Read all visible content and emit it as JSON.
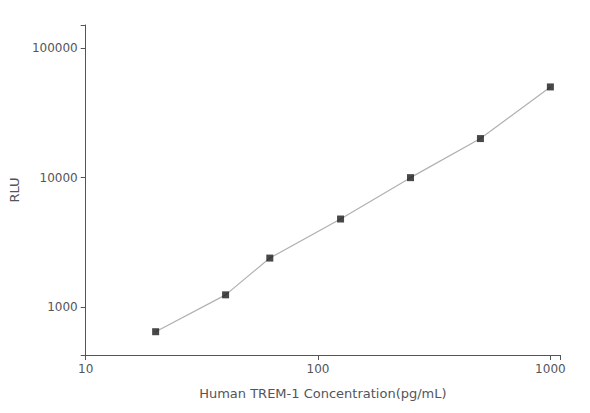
{
  "chart_data": {
    "type": "line",
    "x": [
      20,
      40,
      62,
      125,
      250,
      500,
      1000
    ],
    "series": [
      {
        "type": "line",
        "color": "#b0b0b0",
        "values": [
          650,
          1250,
          2400,
          4800,
          10000,
          20000,
          50000
        ]
      },
      {
        "type": "scatter",
        "color": "#1a1a1a",
        "marker": "square",
        "values": [
          650,
          1250,
          2400,
          4800,
          10000,
          20000,
          50000
        ]
      }
    ],
    "xlabel": "Human TREM-1 Concentration(pg/mL)",
    "ylabel": "RLU",
    "xlim": [
      10,
      1100
    ],
    "ylim": [
      430,
      150000
    ],
    "xticks": [
      10,
      100,
      1000
    ],
    "yticks": [
      1000,
      10000,
      100000
    ],
    "log": true,
    "grid": false
  }
}
